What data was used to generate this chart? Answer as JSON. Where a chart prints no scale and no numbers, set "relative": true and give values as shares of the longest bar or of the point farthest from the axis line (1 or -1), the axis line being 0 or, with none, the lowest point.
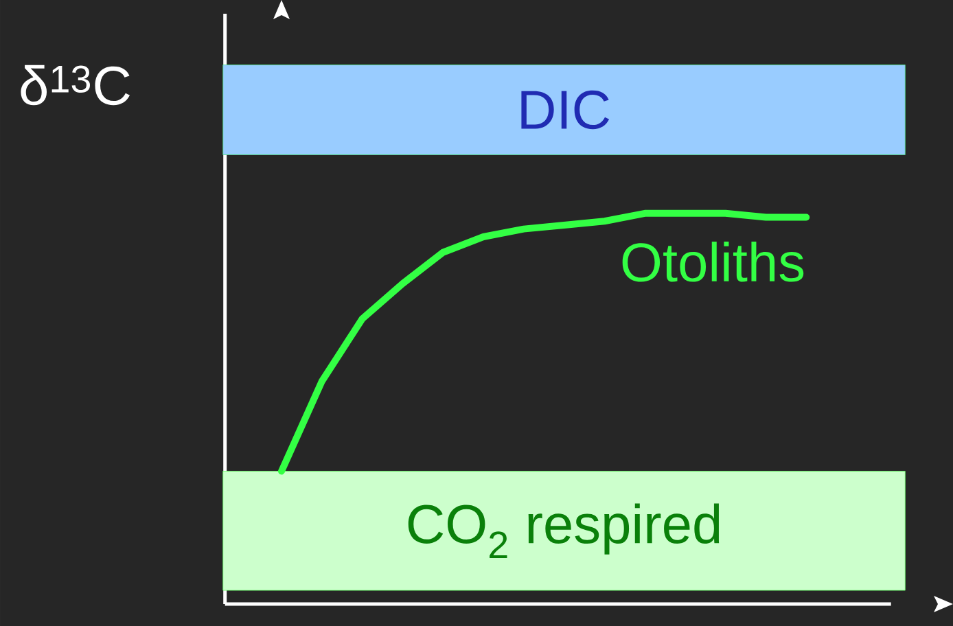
{
  "chart_data": {
    "type": "line",
    "relative": true,
    "ylabel": "δ$^{13}$C",
    "categories": [
      null,
      null,
      null,
      null,
      null,
      null,
      null,
      null,
      null,
      null,
      null,
      null,
      null,
      null
    ],
    "series": [
      {
        "name": "Otoliths",
        "color": "#33ff44",
        "values": [
          0.34,
          0.57,
          0.73,
          0.82,
          0.9,
          0.94,
          0.96,
          0.97,
          0.98,
          1.0,
          1.0,
          1.0,
          0.99,
          0.99
        ]
      }
    ],
    "bands": [
      {
        "axis": "y",
        "from": 1.15,
        "to": 1.38,
        "label": "DIC",
        "color": "#99ccff"
      },
      {
        "axis": "y",
        "from": 0.035,
        "to": 0.34,
        "label": "CO$_{2}$ respired",
        "color": "#ccffcc"
      }
    ],
    "marker": "none",
    "line_style": "solid"
  }
}
